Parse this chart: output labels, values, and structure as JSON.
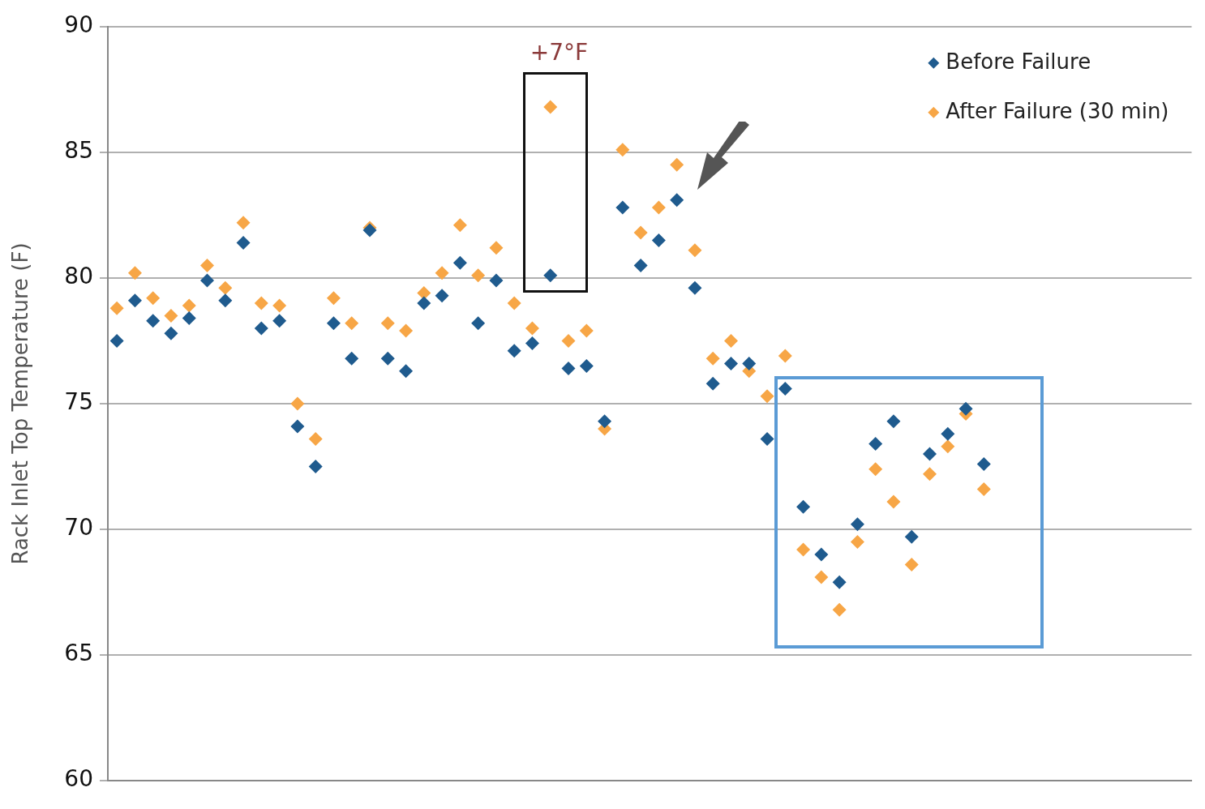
{
  "chart_data": {
    "type": "scatter",
    "ylabel": "Rack Inlet Top Temperature (F)",
    "categories": [
      null,
      null,
      null,
      null,
      null,
      null,
      null,
      null,
      null,
      null,
      null,
      null,
      null,
      null,
      null,
      null,
      null,
      null,
      null,
      null,
      null,
      null,
      null,
      null,
      null,
      null,
      null,
      null,
      null,
      null,
      null,
      null,
      null,
      null,
      null,
      null,
      null,
      null,
      null,
      null,
      null,
      null,
      null,
      null,
      null,
      null,
      null,
      null,
      null,
      null,
      null,
      null,
      null,
      null,
      null,
      null,
      null,
      null,
      null,
      null
    ],
    "series": [
      {
        "name": "Before Failure",
        "color": "#1f5b8e",
        "values": [
          77.5,
          79.1,
          78.3,
          77.8,
          78.4,
          79.9,
          79.1,
          81.4,
          78.0,
          78.3,
          74.1,
          72.5,
          78.2,
          76.8,
          81.9,
          76.8,
          76.3,
          79.0,
          79.3,
          80.6,
          78.2,
          79.9,
          77.1,
          77.4,
          80.1,
          76.4,
          76.5,
          74.3,
          82.8,
          80.5,
          81.5,
          83.1,
          79.6,
          75.8,
          76.6,
          76.6,
          73.6,
          75.6,
          70.9,
          69.0,
          67.9,
          70.2,
          73.4,
          74.3,
          69.7,
          73.0,
          73.8,
          74.8,
          72.6,
          null,
          null,
          null,
          null,
          null,
          null,
          null,
          null,
          null,
          null,
          null
        ]
      },
      {
        "name": "After Failure (30 min)",
        "color": "#f7a646",
        "values": [
          78.8,
          80.2,
          79.2,
          78.5,
          78.9,
          80.5,
          79.6,
          82.2,
          79.0,
          78.9,
          75.0,
          73.6,
          79.2,
          78.2,
          82.0,
          78.2,
          77.9,
          79.4,
          80.2,
          82.1,
          80.1,
          81.2,
          79.0,
          78.0,
          86.8,
          77.5,
          77.9,
          74.0,
          85.1,
          81.8,
          82.8,
          84.5,
          81.1,
          76.8,
          77.5,
          76.3,
          75.3,
          76.9,
          69.2,
          68.1,
          66.8,
          69.5,
          72.4,
          71.1,
          68.6,
          72.2,
          73.3,
          74.6,
          71.6,
          null,
          null,
          null,
          null,
          null,
          null,
          null,
          null,
          null,
          null,
          null
        ]
      }
    ],
    "ylim": [
      60,
      90
    ],
    "yticks": [
      60,
      65,
      70,
      75,
      80,
      85,
      90
    ],
    "grid": "y",
    "legend": "top right",
    "marker": "diamond",
    "annotations": [
      "+7°F"
    ]
  }
}
